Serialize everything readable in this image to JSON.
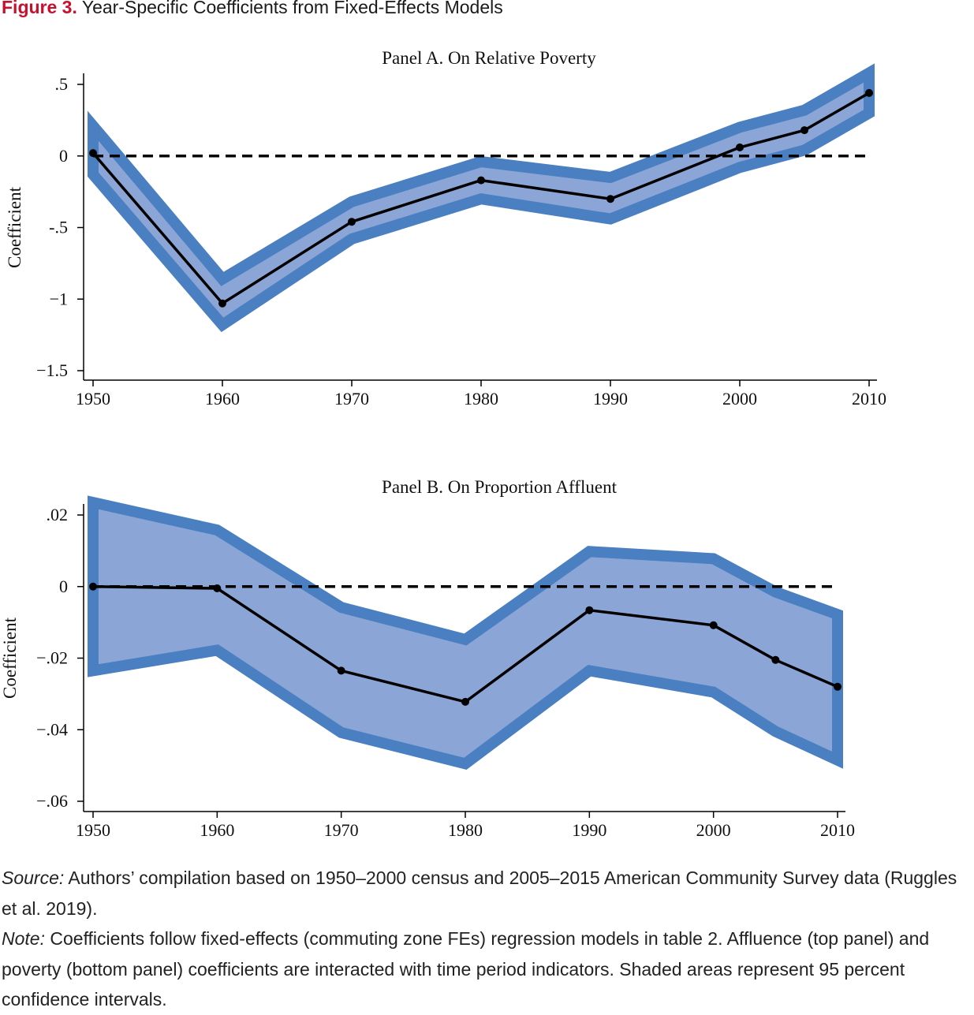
{
  "figure": {
    "label": "Figure 3.",
    "title": "Year-Specific Coefficients from Fixed-Effects Models"
  },
  "colors": {
    "ci_outer": "#4a7fc1",
    "ci_inner": "#8ba5d6",
    "line": "#000000",
    "title_accent": "#c8102e"
  },
  "chart_data": [
    {
      "type": "line",
      "title": "Panel A. On Relative Poverty",
      "xlabel": "",
      "ylabel": "Coefficient",
      "xlim": [
        1950,
        2010
      ],
      "ylim": [
        -1.5,
        0.5
      ],
      "x_ticks": [
        1950,
        1960,
        1970,
        1980,
        1990,
        2000,
        2010
      ],
      "x_tick_labels": [
        "1950",
        "1960",
        "1970",
        "1980",
        "1990",
        "2000",
        "2010"
      ],
      "y_ticks": [
        0.5,
        0,
        -0.5,
        -1,
        -1.5
      ],
      "y_tick_labels": [
        ".5",
        "0",
        "-.5",
        "−1",
        "−1.5"
      ],
      "reference_line": 0,
      "series": [
        {
          "x": [
            1950,
            1960,
            1970,
            1980,
            1990,
            2000,
            2005,
            2010
          ],
          "values": [
            0.02,
            -1.03,
            -0.46,
            -0.17,
            -0.3,
            0.06,
            0.18,
            0.44
          ],
          "ci_lower": [
            -0.13,
            -1.18,
            -0.58,
            -0.3,
            -0.44,
            -0.08,
            0.04,
            0.3
          ],
          "ci_upper": [
            0.21,
            -0.86,
            -0.32,
            -0.04,
            -0.15,
            0.2,
            0.32,
            0.58
          ]
        }
      ]
    },
    {
      "type": "line",
      "title": "Panel B. On Proportion Affluent",
      "xlabel": "",
      "ylabel": "Coefficient",
      "xlim": [
        1950,
        2010
      ],
      "ylim": [
        -0.06,
        0.02
      ],
      "x_ticks": [
        1950,
        1960,
        1970,
        1980,
        1990,
        2000,
        2010
      ],
      "x_tick_labels": [
        "1950",
        "1960",
        "1970",
        "1980",
        "1990",
        "2000",
        "2010"
      ],
      "y_ticks": [
        0.02,
        0,
        -0.02,
        -0.04,
        -0.06
      ],
      "y_tick_labels": [
        ".02",
        "0",
        "−.02",
        "−.04",
        "−.06"
      ],
      "reference_line": 0,
      "series": [
        {
          "x": [
            1950,
            1960,
            1970,
            1980,
            1990,
            2000,
            2005,
            2010
          ],
          "values": [
            0.0,
            -0.0005,
            -0.0235,
            -0.0322,
            -0.0066,
            -0.0108,
            -0.0205,
            -0.028
          ],
          "ci_lower": [
            -0.0235,
            -0.0178,
            -0.0408,
            -0.0495,
            -0.0235,
            -0.0295,
            -0.0405,
            -0.0485
          ],
          "ci_upper": [
            0.0235,
            0.0158,
            -0.0058,
            -0.0148,
            0.0098,
            0.0078,
            -0.0015,
            -0.0078
          ]
        }
      ]
    }
  ],
  "source": {
    "label": "Source:",
    "text": "Authors’ compilation based on 1950–2000 census and 2005–2015 American Community Survey data (Ruggles et al. 2019)."
  },
  "note": {
    "label": "Note:",
    "text": "Coefficients follow fixed-effects (commuting zone FEs) regression models in table 2. Affluence (top panel) and poverty (bottom panel) coefficients are interacted with time period indicators. Shaded areas represent 95 percent confidence intervals."
  }
}
